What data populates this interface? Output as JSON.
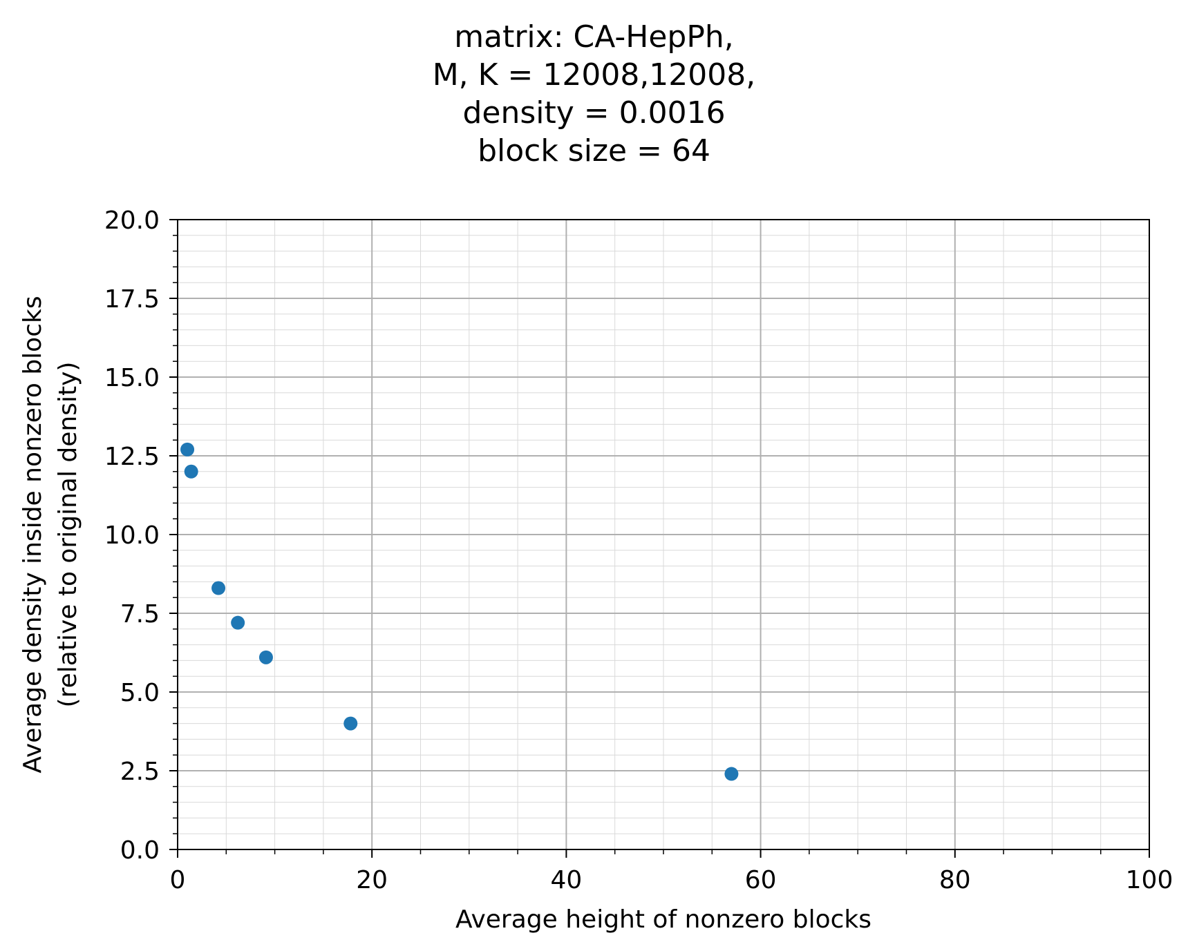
{
  "chart_data": {
    "type": "scatter",
    "title_lines": [
      "matrix: CA-HepPh,",
      "M, K = 12008,12008,",
      "density = 0.0016",
      "block size = 64"
    ],
    "xlabel": "Average height of nonzero blocks",
    "ylabel_lines": [
      "Average density inside nonzero blocks",
      "(relative to original density)"
    ],
    "xlim": [
      0,
      100
    ],
    "ylim": [
      0,
      20
    ],
    "x_ticks": [
      "0",
      "20",
      "40",
      "60",
      "80",
      "100"
    ],
    "y_ticks": [
      "0.0",
      "2.5",
      "5.0",
      "7.5",
      "10.0",
      "12.5",
      "15.0",
      "17.5",
      "20.0"
    ],
    "grid": true,
    "minor_grid": true,
    "marker_color": "#1f77b4",
    "points": [
      {
        "x": 1.0,
        "y": 12.7
      },
      {
        "x": 1.4,
        "y": 12.0
      },
      {
        "x": 4.2,
        "y": 8.3
      },
      {
        "x": 6.2,
        "y": 7.2
      },
      {
        "x": 9.1,
        "y": 6.1
      },
      {
        "x": 17.8,
        "y": 4.0
      },
      {
        "x": 57.0,
        "y": 2.4
      }
    ]
  }
}
